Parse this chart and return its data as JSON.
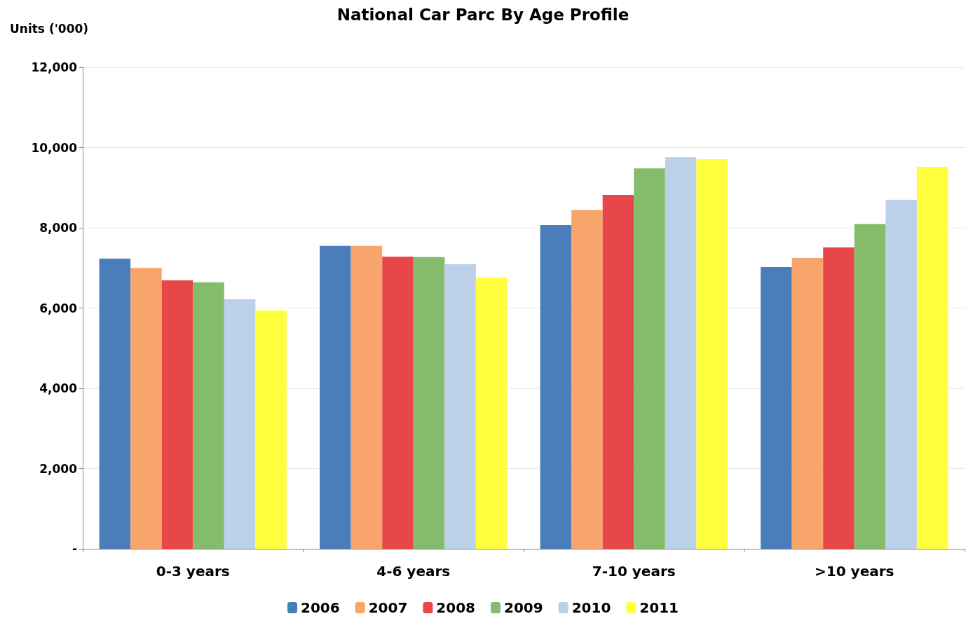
{
  "chart_data": {
    "type": "bar",
    "title": "National Car Parc By Age Profile",
    "ylabel": "Units ('000)",
    "categories": [
      "0-3 years",
      "4-6 years",
      "7-10 years",
      ">10 years"
    ],
    "series": [
      {
        "name": "2006",
        "color": "#4a7ebb",
        "values": [
          7230,
          7550,
          8070,
          7020
        ]
      },
      {
        "name": "2007",
        "color": "#f7a56a",
        "values": [
          7000,
          7550,
          8440,
          7250
        ]
      },
      {
        "name": "2008",
        "color": "#e8474a",
        "values": [
          6690,
          7280,
          8820,
          7510
        ]
      },
      {
        "name": "2009",
        "color": "#84bc6c",
        "values": [
          6640,
          7270,
          9480,
          8090
        ]
      },
      {
        "name": "2010",
        "color": "#bcd0ea",
        "values": [
          6220,
          7090,
          9760,
          8700
        ]
      },
      {
        "name": "2011",
        "color": "#ffff40",
        "values": [
          5940,
          6760,
          9710,
          9520
        ]
      }
    ],
    "ylim": [
      0,
      12000
    ],
    "yticks": [
      {
        "value": 0,
        "label": "-"
      },
      {
        "value": 2000,
        "label": "2,000"
      },
      {
        "value": 4000,
        "label": "4,000"
      },
      {
        "value": 6000,
        "label": "6,000"
      },
      {
        "value": 8000,
        "label": "8,000"
      },
      {
        "value": 10000,
        "label": "10,000"
      },
      {
        "value": 12000,
        "label": "12,000"
      }
    ],
    "grid": "y",
    "legend": "bottom"
  }
}
